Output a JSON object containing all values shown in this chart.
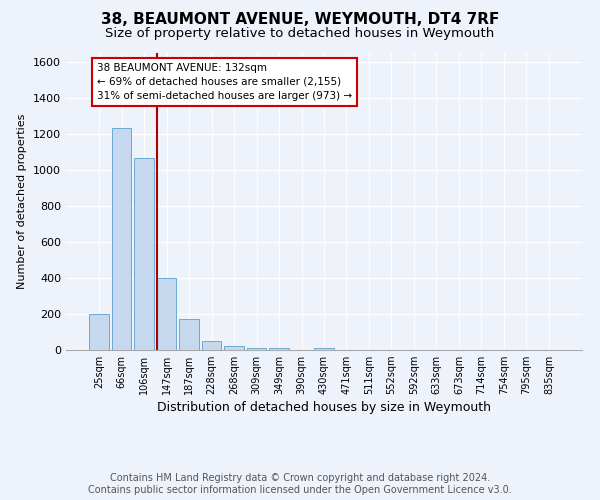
{
  "title1": "38, BEAUMONT AVENUE, WEYMOUTH, DT4 7RF",
  "title2": "Size of property relative to detached houses in Weymouth",
  "xlabel": "Distribution of detached houses by size in Weymouth",
  "ylabel": "Number of detached properties",
  "footnote1": "Contains HM Land Registry data © Crown copyright and database right 2024.",
  "footnote2": "Contains public sector information licensed under the Open Government Licence v3.0.",
  "bar_labels": [
    "25sqm",
    "66sqm",
    "106sqm",
    "147sqm",
    "187sqm",
    "228sqm",
    "268sqm",
    "309sqm",
    "349sqm",
    "390sqm",
    "430sqm",
    "471sqm",
    "511sqm",
    "552sqm",
    "592sqm",
    "633sqm",
    "673sqm",
    "714sqm",
    "754sqm",
    "795sqm",
    "835sqm"
  ],
  "bar_values": [
    200,
    1230,
    1065,
    400,
    170,
    50,
    20,
    10,
    10,
    0,
    10,
    0,
    0,
    0,
    0,
    0,
    0,
    0,
    0,
    0,
    0
  ],
  "bar_color": "#c5d8ee",
  "bar_edge_color": "#6aaad4",
  "vline_x": 2.57,
  "vline_color": "#aa0000",
  "annotation_text": "38 BEAUMONT AVENUE: 132sqm\n← 69% of detached houses are smaller (2,155)\n31% of semi-detached houses are larger (973) →",
  "annotation_box_color": "#ffffff",
  "annotation_box_edge": "#cc0000",
  "ylim": [
    0,
    1650
  ],
  "yticks": [
    0,
    200,
    400,
    600,
    800,
    1000,
    1200,
    1400,
    1600
  ],
  "background_color": "#eef2fa",
  "plot_bg_color": "#eef2fa",
  "grid_color": "#ffffff",
  "title1_fontsize": 11,
  "title2_fontsize": 9.5,
  "xlabel_fontsize": 9,
  "ylabel_fontsize": 8,
  "footnote_fontsize": 7,
  "annotation_fontsize": 7.5
}
